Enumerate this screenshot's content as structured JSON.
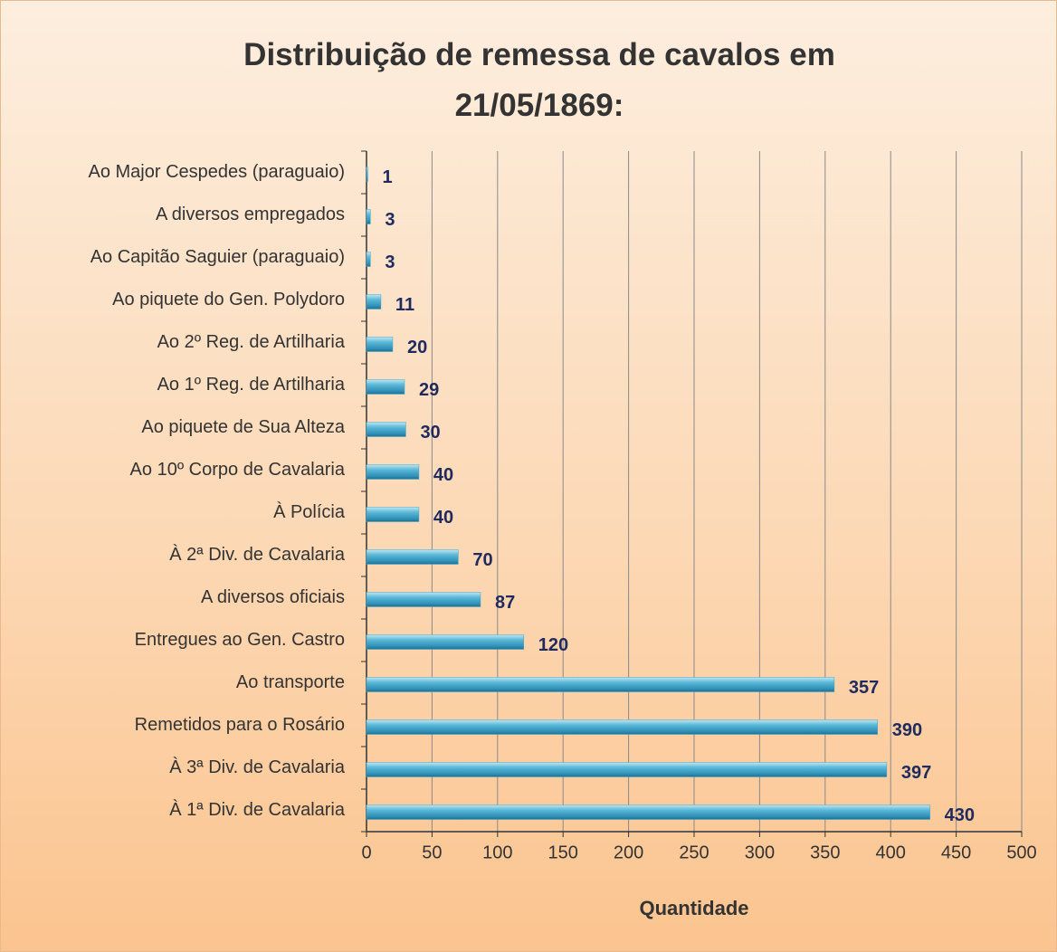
{
  "chart_data": {
    "type": "barh",
    "title": "Distribuição de remessa de  cavalos em\n21/05/1869:",
    "xlabel": "Quantidade",
    "categories": [
      "Ao Major Cespedes (paraguaio)",
      "A diversos empregados",
      "Ao Capitão Saguier (paraguaio)",
      "Ao piquete do Gen. Polydoro",
      "Ao 2º Reg. de Artilharia",
      "Ao 1º Reg. de Artilharia",
      "Ao piquete de Sua Alteza",
      "Ao 10º Corpo de Cavalaria",
      "À Polícia",
      "À 2ª Div. de Cavalaria",
      "A diversos oficiais",
      "Entregues ao Gen. Castro",
      "Ao transporte",
      "Remetidos para o Rosário",
      "À 3ª Div. de Cavalaria",
      "À 1ª Div. de Cavalaria"
    ],
    "values": [
      1,
      3,
      3,
      11,
      20,
      29,
      30,
      40,
      40,
      70,
      87,
      120,
      357,
      390,
      397,
      430
    ],
    "color": "#45a6c9",
    "xlim": [
      0,
      500
    ],
    "xticks": [
      0,
      50,
      100,
      150,
      200,
      250,
      300,
      350,
      400,
      450,
      500
    ],
    "grid": true
  }
}
